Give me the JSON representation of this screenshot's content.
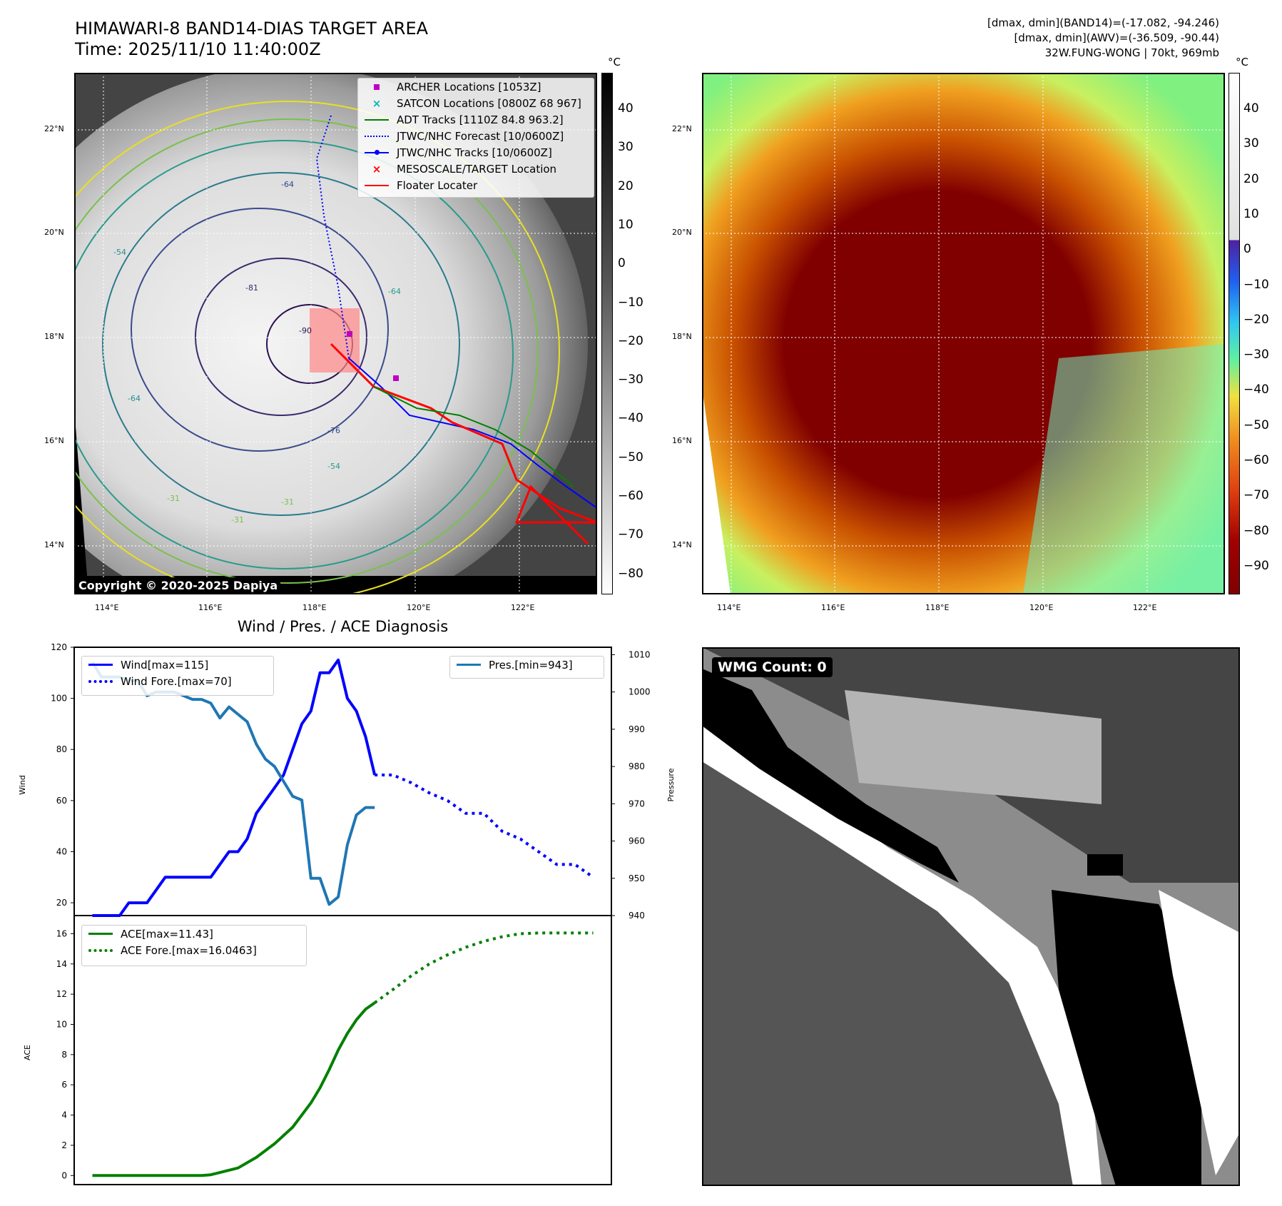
{
  "header": {
    "title_line1": "HIMAWARI-8 BAND14-DIAS TARGET AREA",
    "title_line2": "Time: 2025/11/10 11:40:00Z",
    "stats_line1": "[dmax, dmin](BAND14)=(-17.082, -94.246)",
    "stats_line2": "[dmax, dmin](AWV)=(-36.509, -90.44)",
    "stats_line3": "32W.FUNG-WONG | 70kt, 969mb"
  },
  "map_axes": {
    "lat_labels": [
      "22°N",
      "20°N",
      "18°N",
      "16°N",
      "14°N"
    ],
    "lon_labels": [
      "114°E",
      "116°E",
      "118°E",
      "120°E",
      "122°E"
    ]
  },
  "ir_panel": {
    "colorbar_unit": "°C",
    "colorbar_ticks": [
      "40",
      "30",
      "20",
      "10",
      "0",
      "−10",
      "−20",
      "−30",
      "−40",
      "−50",
      "−60",
      "−70",
      "−80"
    ],
    "contour_labels": [
      "-64",
      "-54",
      "-81",
      "-90",
      "-64",
      "-76",
      "-54",
      "-31",
      "-64",
      "-31",
      "-31"
    ],
    "copyright": "Copyright © 2020-2025 Dapiya",
    "legend": [
      {
        "label": "ARCHER Locations [1053Z]",
        "color": "#c000c0",
        "marker": "square"
      },
      {
        "label": "SATCON Locations [0800Z 68 967]",
        "color": "#00b8b8",
        "marker": "x"
      },
      {
        "label": "ADT Tracks [1110Z 84.8 963.2]",
        "color": "#008000",
        "marker": "line"
      },
      {
        "label": "JTWC/NHC Forecast [10/0600Z]",
        "color": "#0000ff",
        "marker": "dotted"
      },
      {
        "label": "JTWC/NHC Tracks [10/0600Z]",
        "color": "#0000ff",
        "marker": "line-dot"
      },
      {
        "label": "MESOSCALE/TARGET Location",
        "color": "#ff0000",
        "marker": "x"
      },
      {
        "label": "Floater Locater",
        "color": "#ff0000",
        "marker": "line"
      }
    ]
  },
  "awv_panel": {
    "colorbar_unit": "°C",
    "colorbar_ticks": [
      "40",
      "30",
      "20",
      "10",
      "0",
      "−10",
      "−20",
      "−30",
      "−40",
      "−50",
      "−60",
      "−70",
      "−80",
      "−90"
    ]
  },
  "wmg_panel": {
    "label": "WMG Count: 0"
  },
  "chart_data": [
    {
      "type": "line",
      "title": "Wind / Pres. / ACE Diagnosis",
      "ylabel": "Wind",
      "ylabel_right": "Pressure",
      "ylim": [
        15,
        120
      ],
      "ylim_right": [
        940,
        1012
      ],
      "yticks": [
        "120",
        "100",
        "80",
        "60",
        "40",
        "20"
      ],
      "yticks_right": [
        "1010",
        "1000",
        "990",
        "980",
        "970",
        "960",
        "950",
        "940"
      ],
      "legend_left": [
        "Wind[max=115]",
        "Wind Fore.[max=70]"
      ],
      "legend_right": [
        "Pres.[min=943]"
      ],
      "series": [
        {
          "name": "Wind[max=115]",
          "color": "#0000ff",
          "axis": "left",
          "style": "solid",
          "x": [
            0,
            1,
            2,
            3,
            4,
            5,
            6,
            7,
            8,
            9,
            10,
            11,
            12,
            13,
            14,
            15,
            16,
            17,
            18,
            19,
            20,
            21,
            22,
            23,
            24,
            25,
            26,
            27,
            28,
            29,
            30,
            31
          ],
          "values": [
            15,
            15,
            15,
            15,
            20,
            20,
            20,
            25,
            30,
            30,
            30,
            30,
            30,
            30,
            35,
            40,
            40,
            45,
            55,
            60,
            65,
            70,
            80,
            90,
            95,
            110,
            110,
            115,
            100,
            95,
            85,
            70
          ]
        },
        {
          "name": "Wind Fore.[max=70]",
          "color": "#0000ff",
          "axis": "left",
          "style": "dotted",
          "x": [
            31,
            33,
            35,
            37,
            39,
            41,
            43,
            45,
            47,
            49,
            51,
            53,
            55
          ],
          "values": [
            70,
            70,
            67,
            63,
            60,
            55,
            55,
            48,
            45,
            40,
            35,
            35,
            30
          ]
        },
        {
          "name": "Pres.[min=943]",
          "color": "#1f77b4",
          "axis": "right",
          "style": "solid",
          "x": [
            0,
            1,
            2,
            3,
            4,
            5,
            6,
            7,
            8,
            9,
            10,
            11,
            12,
            13,
            14,
            15,
            16,
            17,
            18,
            19,
            20,
            21,
            22,
            23,
            24,
            25,
            26,
            27,
            28,
            29,
            30,
            31
          ],
          "values": [
            1008,
            1004,
            1004,
            1004,
            1003,
            1003,
            999,
            1000,
            1000,
            1000,
            999,
            998,
            998,
            997,
            993,
            996,
            994,
            992,
            986,
            982,
            980,
            976,
            972,
            971,
            950,
            950,
            943,
            945,
            959,
            967,
            969,
            969
          ]
        }
      ]
    },
    {
      "type": "line",
      "ylabel": "ACE",
      "ylim": [
        -0.6,
        17.2
      ],
      "yticks": [
        "16",
        "14",
        "12",
        "10",
        "8",
        "6",
        "4",
        "2",
        "0"
      ],
      "legend": [
        "ACE[max=11.43]",
        "ACE Fore.[max=16.0463]"
      ],
      "series": [
        {
          "name": "ACE[max=11.43]",
          "color": "#008000",
          "style": "solid",
          "x": [
            0,
            2,
            4,
            6,
            8,
            10,
            12,
            13,
            14,
            16,
            18,
            20,
            22,
            24,
            25,
            26,
            27,
            28,
            29,
            30,
            31
          ],
          "values": [
            0,
            0,
            0,
            0,
            0,
            0,
            0,
            0.05,
            0.2,
            0.5,
            1.2,
            2.1,
            3.2,
            4.8,
            5.8,
            7.0,
            8.3,
            9.4,
            10.3,
            11.0,
            11.43
          ]
        },
        {
          "name": "ACE Fore.[max=16.0463]",
          "color": "#008000",
          "style": "dotted",
          "x": [
            31,
            33,
            35,
            37,
            39,
            41,
            43,
            45,
            47,
            49,
            51,
            53,
            55
          ],
          "values": [
            11.43,
            12.3,
            13.2,
            14.0,
            14.6,
            15.1,
            15.5,
            15.8,
            16.0,
            16.05,
            16.05,
            16.05,
            16.05
          ]
        }
      ]
    }
  ]
}
